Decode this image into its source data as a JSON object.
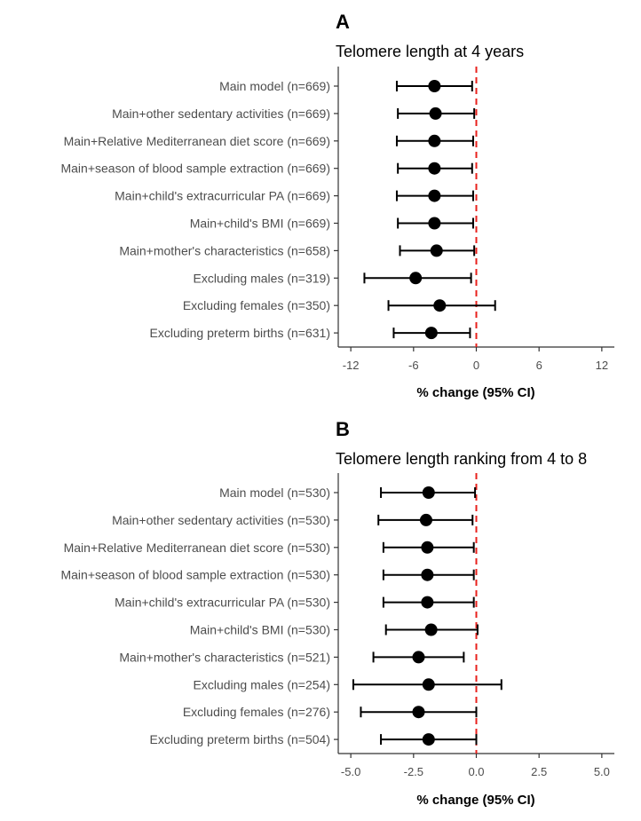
{
  "chart_data": [
    {
      "type": "forest",
      "panel": "A",
      "title": "Telomere length at 4 years",
      "xlabel": "% change (95% CI)",
      "xlim": [
        -13.2,
        13.2
      ],
      "xticks": [
        -12,
        -6,
        0,
        6,
        12
      ],
      "xtick_labels": [
        "-12",
        "-6",
        "0",
        "6",
        "12"
      ],
      "reference_line": 0,
      "reference_color": "#e8211c",
      "rows": [
        {
          "label": "Main model (n=669)",
          "estimate": -4.0,
          "lower": -7.6,
          "upper": -0.4
        },
        {
          "label": "Main+other sedentary activities (n=669)",
          "estimate": -3.9,
          "lower": -7.5,
          "upper": -0.2
        },
        {
          "label": "Main+Relative Mediterranean diet score (n=669)",
          "estimate": -4.0,
          "lower": -7.6,
          "upper": -0.3
        },
        {
          "label": "Main+season of blood sample extraction (n=669)",
          "estimate": -4.0,
          "lower": -7.5,
          "upper": -0.4
        },
        {
          "label": "Main+child's extracurricular PA (n=669)",
          "estimate": -4.0,
          "lower": -7.6,
          "upper": -0.3
        },
        {
          "label": "Main+child's BMI (n=669)",
          "estimate": -4.0,
          "lower": -7.5,
          "upper": -0.3
        },
        {
          "label": "Main+mother's characteristics (n=658)",
          "estimate": -3.8,
          "lower": -7.3,
          "upper": -0.2
        },
        {
          "label": "Excluding males (n=319)",
          "estimate": -5.8,
          "lower": -10.7,
          "upper": -0.5
        },
        {
          "label": "Excluding females (n=350)",
          "estimate": -3.5,
          "lower": -8.4,
          "upper": 1.8
        },
        {
          "label": "Excluding preterm births (n=631)",
          "estimate": -4.3,
          "lower": -7.9,
          "upper": -0.6
        }
      ]
    },
    {
      "type": "forest",
      "panel": "B",
      "title": "Telomere length ranking from 4 to 8",
      "xlabel": "% change (95% CI)",
      "xlim": [
        -5.5,
        5.5
      ],
      "xticks": [
        -5.0,
        -2.5,
        0.0,
        2.5,
        5.0
      ],
      "xtick_labels": [
        "-5.0",
        "-2.5",
        "0.0",
        "2.5",
        "5.0"
      ],
      "reference_line": 0,
      "reference_color": "#e8211c",
      "rows": [
        {
          "label": "Main model (n=530)",
          "estimate": -1.9,
          "lower": -3.8,
          "upper": -0.05
        },
        {
          "label": "Main+other sedentary activities (n=530)",
          "estimate": -2.0,
          "lower": -3.9,
          "upper": -0.15
        },
        {
          "label": "Main+Relative Mediterranean diet score (n=530)",
          "estimate": -1.95,
          "lower": -3.7,
          "upper": -0.1
        },
        {
          "label": "Main+season of blood sample extraction (n=530)",
          "estimate": -1.95,
          "lower": -3.7,
          "upper": -0.1
        },
        {
          "label": "Main+child's extracurricular PA (n=530)",
          "estimate": -1.95,
          "lower": -3.7,
          "upper": -0.1
        },
        {
          "label": "Main+child's BMI (n=530)",
          "estimate": -1.8,
          "lower": -3.6,
          "upper": 0.05
        },
        {
          "label": "Main+mother's characteristics (n=521)",
          "estimate": -2.3,
          "lower": -4.1,
          "upper": -0.5
        },
        {
          "label": "Excluding males (n=254)",
          "estimate": -1.9,
          "lower": -4.9,
          "upper": 1.0
        },
        {
          "label": "Excluding females (n=276)",
          "estimate": -2.3,
          "lower": -4.6,
          "upper": 0.0
        },
        {
          "label": "Excluding preterm births (n=504)",
          "estimate": -1.9,
          "lower": -3.8,
          "upper": 0.0
        }
      ]
    }
  ]
}
